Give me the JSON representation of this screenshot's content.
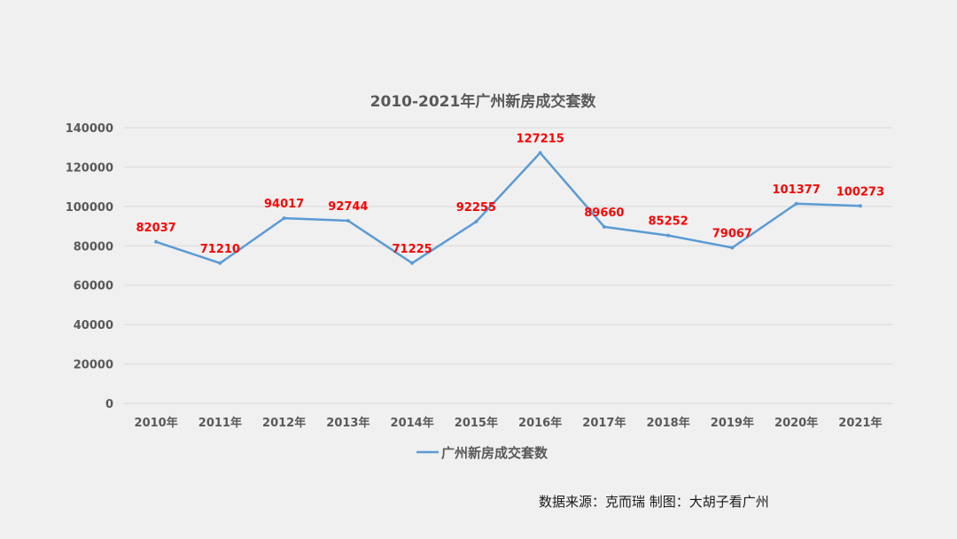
{
  "chart_data": {
    "type": "line",
    "title": "2010-2021年广州新房成交套数",
    "categories": [
      "2010年",
      "2011年",
      "2012年",
      "2013年",
      "2014年",
      "2015年",
      "2016年",
      "2017年",
      "2018年",
      "2019年",
      "2020年",
      "2021年"
    ],
    "series": [
      {
        "name": "广州新房成交套数",
        "values": [
          82037,
          71210,
          94017,
          92744,
          71225,
          92255,
          127215,
          89660,
          85252,
          79067,
          101377,
          100273
        ],
        "data_labels": [
          "82037",
          "71210",
          "94017",
          "92744",
          "71225",
          "92255",
          "127215",
          "89660",
          "85252",
          "79067",
          "101377",
          "100273"
        ]
      }
    ],
    "ylim": [
      0,
      140000
    ],
    "yticks": [
      "0",
      "20000",
      "40000",
      "60000",
      "80000",
      "100000",
      "120000",
      "140000"
    ],
    "grid": true,
    "legend": "bottom",
    "colors": {
      "line": "#5b9bd5",
      "data_label": "#ff0000",
      "text": "#595959",
      "grid": "#d9d9d9",
      "background": "#f0f0f0"
    }
  },
  "footer": {
    "source": "数据来源：克而瑞   制图：大胡子看广州"
  }
}
